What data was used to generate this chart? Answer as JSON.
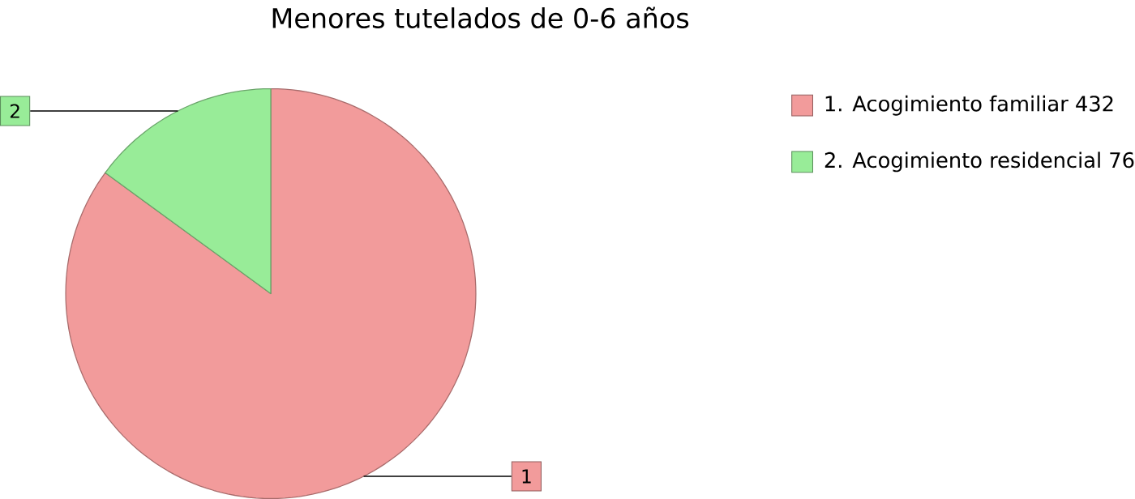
{
  "chart_data": {
    "type": "pie",
    "title": "Menores tutelados de 0-6 años",
    "categories": [
      "1. Acogimiento familiar 432",
      "2. Acogimiento residencial 76"
    ],
    "values": [
      432,
      76
    ],
    "colors": [
      "#f29b9b",
      "#98ec98"
    ],
    "annotations": [
      "1",
      "2"
    ],
    "legend": "top right"
  }
}
